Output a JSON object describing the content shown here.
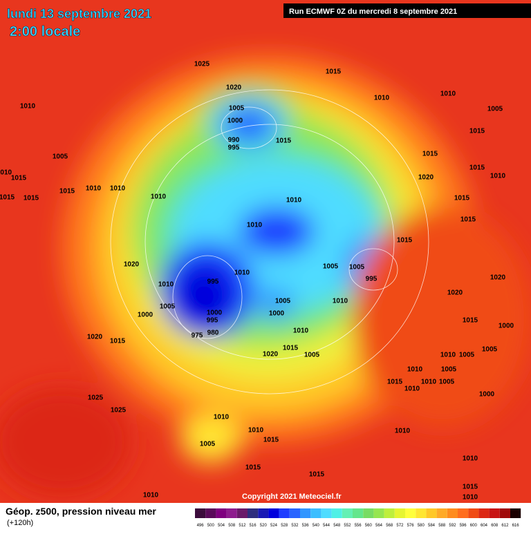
{
  "header": {
    "title": "lundi 13 septembre 2021",
    "subtitle": "2:00 locale",
    "run": "Run ECMWF 0Z du mercredi 8 septembre 2021"
  },
  "copyright": "Copyright 2021 Meteociel.fr",
  "legend": {
    "title": "Géop. z500, pression niveau mer",
    "lead": "(+120h)",
    "ticks": [
      496,
      500,
      504,
      508,
      512,
      516,
      520,
      524,
      528,
      532,
      536,
      540,
      544,
      548,
      552,
      556,
      560,
      564,
      568,
      572,
      576,
      580,
      584,
      588,
      592,
      596,
      600,
      604,
      608,
      612,
      616
    ],
    "colors": [
      "#3c0c3c",
      "#5a0a5a",
      "#7f007f",
      "#8e1c8e",
      "#6a1a6a",
      "#2e2e7e",
      "#1a1ab4",
      "#0000dc",
      "#1e3cff",
      "#2864ff",
      "#3296ff",
      "#3cbeff",
      "#50dcff",
      "#50f0e6",
      "#64f0b4",
      "#64e68c",
      "#78dc64",
      "#96e650",
      "#beef3c",
      "#e6f532",
      "#ffff3c",
      "#ffe632",
      "#ffc828",
      "#ffaa28",
      "#ff8c1e",
      "#ff6e1e",
      "#f04b14",
      "#dc2814",
      "#c81414",
      "#a00a0a",
      "#1a0000"
    ]
  },
  "pressure_labels": [
    1025,
    1020,
    1015,
    1010,
    1010,
    1005,
    1000,
    990,
    995,
    1015,
    1010,
    1005,
    1015,
    1015,
    1005,
    1010,
    1015,
    1015,
    1015,
    1015,
    1010,
    1010,
    1010,
    1010,
    1010,
    1020,
    1015,
    1010,
    1015,
    1015,
    1015,
    1020,
    1010,
    995,
    1010,
    1005,
    1005,
    995,
    1005,
    1000,
    1000,
    995,
    980,
    975,
    1005,
    1000,
    1010,
    1020,
    1020,
    1015,
    1000,
    1020,
    1015,
    1010,
    1020,
    1015,
    1005,
    1010,
    1005,
    1005,
    1005,
    1010,
    1015,
    1010,
    1005,
    1010,
    1000,
    1025,
    1025,
    1010,
    1005,
    1010,
    1015,
    1010,
    1010,
    1015,
    1015,
    1010,
    1015,
    1010
  ]
}
